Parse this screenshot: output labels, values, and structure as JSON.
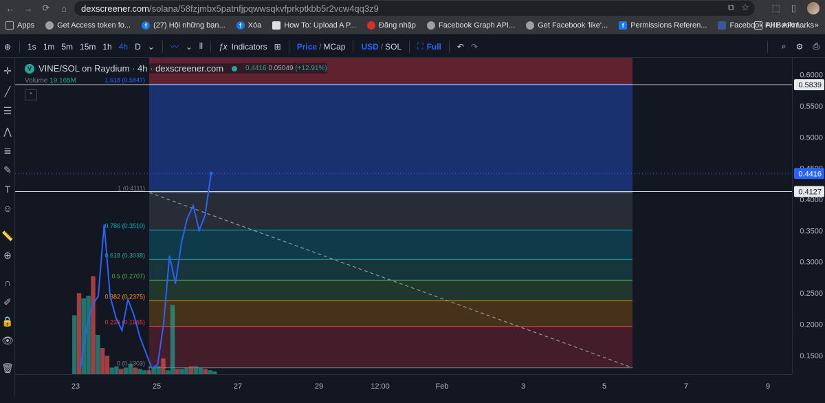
{
  "browser": {
    "url_host": "dexscreener.com",
    "url_path": "/solana/58fzjmbx5patnfjpqwwsqkvfprkptkbb5r2vcw4qq3z9",
    "bookmarks": [
      {
        "label": "Apps",
        "icon": "grid-icon"
      },
      {
        "label": "Get Access token fo...",
        "icon": "globe-icon"
      },
      {
        "label": "(27) Hội những bạn...",
        "icon": "facebook-icon"
      },
      {
        "label": "Xóa",
        "icon": "facebook-icon"
      },
      {
        "label": "How To: Upload A P...",
        "icon": "site-icon"
      },
      {
        "label": "Đăng nhập",
        "icon": "site-icon"
      },
      {
        "label": "Facebook Graph API...",
        "icon": "globe-icon"
      },
      {
        "label": "Get Facebook 'like'...",
        "icon": "globe-icon"
      },
      {
        "label": "Permissions Referen...",
        "icon": "facebook-icon"
      },
      {
        "label": "Facebook PHP API f...",
        "icon": "site-icon"
      }
    ],
    "all_bookmarks": "All Bookmarks"
  },
  "toolbar": {
    "intervals": [
      "1s",
      "1m",
      "5m",
      "15m",
      "1h",
      "4h"
    ],
    "active_interval": "4h",
    "range": "D",
    "indicators": "Indicators",
    "price": "Price",
    "slash1": "/",
    "mcap": "MCap",
    "usd": "USD",
    "slash2": "/",
    "sol": "SOL",
    "full": "Full"
  },
  "legend": {
    "symbol": "VINE/SOL on Raydium · 4h · dexscreener.com",
    "price": "0.4416",
    "change": "0.05049",
    "change_pct": "(+12.91%)",
    "volume_label": "Volume",
    "volume_value": "19.165M"
  },
  "fib_levels": [
    {
      "label": "1.618 (0.5847)",
      "price": 0.5847,
      "color": "#2962ff"
    },
    {
      "label": "1 (0.4111)",
      "price": 0.4111,
      "color": "#787b86"
    },
    {
      "label": "0.786 (0.3510)",
      "price": 0.351,
      "color": "#00bcd4"
    },
    {
      "label": "0.618 (0.3038)",
      "price": 0.3038,
      "color": "#26a69a"
    },
    {
      "label": "0.5 (0.2707)",
      "price": 0.2707,
      "color": "#4caf50"
    },
    {
      "label": "0.382 (0.2375)",
      "price": 0.2375,
      "color": "#ff9800"
    },
    {
      "label": "0.236 (0.1965)",
      "price": 0.1965,
      "color": "#f23645"
    },
    {
      "label": "0 (0.1303)",
      "price": 0.1303,
      "color": "#787b86"
    }
  ],
  "price_axis": {
    "ticks": [
      "0.6000",
      "0.5500",
      "0.5000",
      "0.4500",
      "0.4000",
      "0.3500",
      "0.3000",
      "0.2500",
      "0.2000",
      "0.1500"
    ],
    "tick_values": [
      0.6,
      0.55,
      0.5,
      0.45,
      0.4,
      0.35,
      0.3,
      0.25,
      0.2,
      0.15
    ],
    "hline_1": "0.5839",
    "hline_1_value": 0.5839,
    "hline_2": "0.4127",
    "hline_2_value": 0.4127,
    "current": "0.4416",
    "current_value": 0.4416,
    "min": 0.13,
    "max": 0.605
  },
  "time_axis": {
    "labels": [
      "23",
      "25",
      "27",
      "29",
      "12:00",
      "Feb",
      "3",
      "5",
      "7",
      "9"
    ]
  },
  "chart_data": {
    "type": "line",
    "price_line": [
      0.13,
      0.195,
      0.23,
      0.245,
      0.36,
      0.245,
      0.21,
      0.19,
      0.24,
      0.215,
      0.18,
      0.155,
      0.13,
      0.135,
      0.2,
      0.31,
      0.265,
      0.33,
      0.37,
      0.39,
      0.35,
      0.375,
      0.4416
    ],
    "volume": [
      0.45,
      0.62,
      0.58,
      0.6,
      0.75,
      0.3,
      0.2,
      0.14,
      0.05,
      0.06,
      0.04,
      0.05,
      0.08,
      0.05,
      0.04,
      0.03,
      0.03,
      0.05,
      0.06,
      0.12,
      0.03,
      0.53,
      0.04,
      0.04,
      0.05,
      0.06,
      0.06,
      0.05,
      0.04,
      0.03,
      0.02
    ]
  },
  "colors": {
    "bg": "#131722",
    "line": "#2962ff",
    "vol_up": "#26a69a",
    "vol_down": "#ef5350"
  }
}
